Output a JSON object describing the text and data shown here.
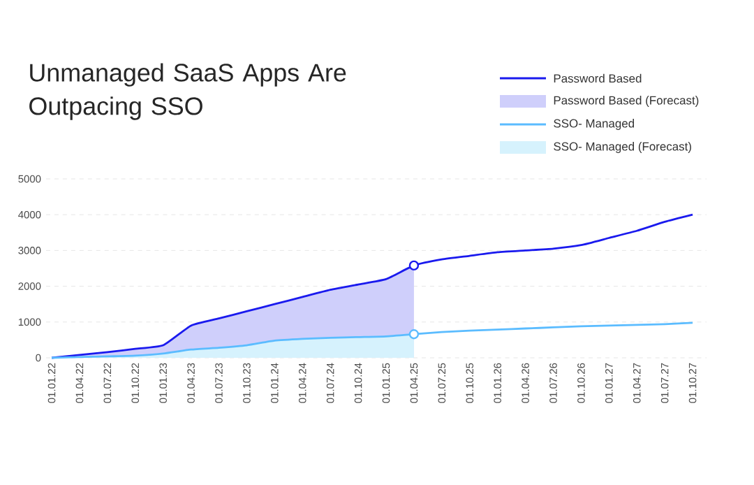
{
  "chart_data": {
    "type": "line",
    "title": "Unmanaged SaaS Apps Are Outpacing SSO",
    "categories": [
      "01.01.22",
      "01.04.22",
      "01.07.22",
      "01.10.22",
      "01.01.23",
      "01.04.23",
      "01.07.23",
      "01.10.23",
      "01.01.24",
      "01.04.24",
      "01.07.24",
      "01.10.24",
      "01.01.25",
      "01.04.25",
      "01.07.25",
      "01.10.25",
      "01.01.26",
      "01.04.26",
      "01.07.26",
      "01.10.26",
      "01.01.27",
      "01.04.27",
      "01.07.27",
      "01.10.27"
    ],
    "series": [
      {
        "name": "Password Based",
        "color": "#1a1aee",
        "values": [
          0,
          80,
          160,
          250,
          350,
          900,
          1100,
          1300,
          1500,
          1700,
          1900,
          2050,
          2200,
          2580,
          2750,
          2850,
          2950,
          3000,
          3050,
          3150,
          3350,
          3550,
          3800,
          4000
        ]
      },
      {
        "name": "Password Based (Forecast)",
        "type": "area",
        "color": "#cfcffb",
        "values": [
          0,
          80,
          160,
          250,
          350,
          900,
          1100,
          1300,
          1500,
          1700,
          1900,
          2050,
          2200,
          2580,
          null,
          null,
          null,
          null,
          null,
          null,
          null,
          null,
          null,
          null
        ]
      },
      {
        "name": "SSO- Managed",
        "color": "#5bbcff",
        "values": [
          0,
          20,
          40,
          60,
          120,
          230,
          280,
          350,
          480,
          530,
          560,
          580,
          600,
          660,
          720,
          760,
          790,
          820,
          850,
          880,
          900,
          920,
          940,
          980
        ]
      },
      {
        "name": "SSO- Managed (Forecast)",
        "type": "area",
        "color": "#d6f2fd",
        "values": [
          0,
          20,
          40,
          60,
          120,
          230,
          280,
          350,
          480,
          530,
          560,
          580,
          600,
          660,
          null,
          null,
          null,
          null,
          null,
          null,
          null,
          null,
          null,
          null
        ]
      },
      {
        "type": "scatter",
        "marker": "circle",
        "color": "#1a1aee",
        "x": [
          "01.04.25"
        ],
        "values": [
          2580
        ]
      },
      {
        "type": "scatter",
        "marker": "circle",
        "color": "#5bbcff",
        "x": [
          "01.04.25"
        ],
        "values": [
          660
        ]
      }
    ],
    "ylim": [
      0,
      5000
    ],
    "yticks": [
      0,
      1000,
      2000,
      3000,
      4000,
      5000
    ],
    "grid": "y",
    "legend": "top right"
  }
}
